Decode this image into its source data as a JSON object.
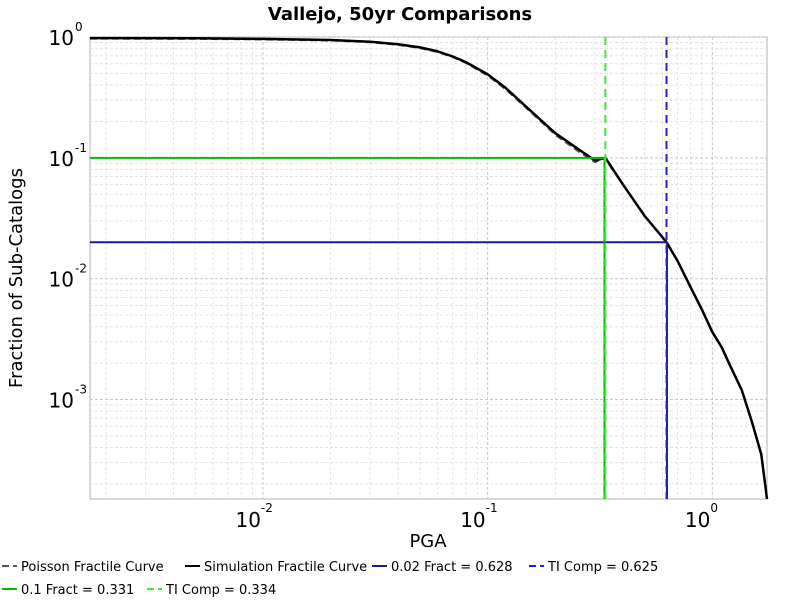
{
  "chart_data": {
    "type": "line",
    "title": "Vallejo, 50yr Comparisons",
    "xlabel": "PGA",
    "ylabel": "Fraction of Sub-Catalogs",
    "xscale": "log",
    "yscale": "log",
    "xlim": [
      0.0017,
      1.75
    ],
    "ylim": [
      0.00015,
      1.0
    ],
    "grid": true,
    "legend_position": "bottom",
    "x_ticks": [
      {
        "base": "10",
        "exp": "-2",
        "value": 0.01
      },
      {
        "base": "10",
        "exp": "-1",
        "value": 0.1
      },
      {
        "base": "10",
        "exp": "0",
        "value": 1
      }
    ],
    "y_ticks": [
      {
        "base": "10",
        "exp": "0",
        "value": 1
      },
      {
        "base": "10",
        "exp": "-1",
        "value": 0.1
      },
      {
        "base": "10",
        "exp": "-2",
        "value": 0.01
      },
      {
        "base": "10",
        "exp": "-3",
        "value": 0.001
      }
    ],
    "series": [
      {
        "name": "Poisson Fractile Curve",
        "color": "#555555",
        "dash": "dashed",
        "points": [
          [
            0.0017,
            0.97
          ],
          [
            0.005,
            0.965
          ],
          [
            0.01,
            0.955
          ],
          [
            0.02,
            0.935
          ],
          [
            0.03,
            0.905
          ],
          [
            0.04,
            0.86
          ],
          [
            0.05,
            0.81
          ],
          [
            0.06,
            0.75
          ],
          [
            0.07,
            0.68
          ],
          [
            0.08,
            0.61
          ],
          [
            0.1,
            0.48
          ],
          [
            0.12,
            0.37
          ],
          [
            0.15,
            0.255
          ],
          [
            0.2,
            0.155
          ],
          [
            0.25,
            0.115
          ],
          [
            0.3,
            0.092
          ],
          [
            0.331,
            0.1
          ],
          [
            0.4,
            0.06
          ],
          [
            0.5,
            0.033
          ],
          [
            0.6,
            0.022
          ],
          [
            0.628,
            0.02
          ],
          [
            0.7,
            0.014
          ],
          [
            0.8,
            0.0085
          ],
          [
            0.9,
            0.0055
          ],
          [
            1.0,
            0.0036
          ],
          [
            1.1,
            0.0027
          ],
          [
            1.2,
            0.0019
          ],
          [
            1.35,
            0.0012
          ],
          [
            1.5,
            0.00065
          ],
          [
            1.65,
            0.00035
          ],
          [
            1.75,
            0.00015
          ]
        ]
      },
      {
        "name": "Simulation Fractile Curve",
        "color": "#000000",
        "dash": "solid",
        "points": [
          [
            0.0017,
            0.98
          ],
          [
            0.005,
            0.975
          ],
          [
            0.01,
            0.965
          ],
          [
            0.02,
            0.945
          ],
          [
            0.03,
            0.915
          ],
          [
            0.04,
            0.87
          ],
          [
            0.05,
            0.82
          ],
          [
            0.06,
            0.76
          ],
          [
            0.07,
            0.69
          ],
          [
            0.08,
            0.62
          ],
          [
            0.1,
            0.49
          ],
          [
            0.12,
            0.38
          ],
          [
            0.15,
            0.26
          ],
          [
            0.2,
            0.16
          ],
          [
            0.25,
            0.12
          ],
          [
            0.3,
            0.095
          ],
          [
            0.334,
            0.1
          ],
          [
            0.4,
            0.06
          ],
          [
            0.5,
            0.033
          ],
          [
            0.6,
            0.022
          ],
          [
            0.625,
            0.02
          ],
          [
            0.7,
            0.014
          ],
          [
            0.8,
            0.0085
          ],
          [
            0.9,
            0.0055
          ],
          [
            1.0,
            0.0036
          ],
          [
            1.1,
            0.0027
          ],
          [
            1.2,
            0.0019
          ],
          [
            1.35,
            0.0012
          ],
          [
            1.5,
            0.00065
          ],
          [
            1.65,
            0.00035
          ],
          [
            1.75,
            0.00015
          ]
        ]
      }
    ],
    "reference_lines": [
      {
        "name": "0.02 Fract = 0.628",
        "color": "#1a1aa0",
        "dash": "solid",
        "x": 0.628,
        "y": 0.02
      },
      {
        "name": "TI Comp = 0.625",
        "color": "#2222cc",
        "dash": "dashed",
        "x": 0.625
      },
      {
        "name": "0.1 Fract = 0.331",
        "color": "#00bb00",
        "dash": "solid",
        "x": 0.331,
        "y": 0.1
      },
      {
        "name": "TI Comp = 0.334",
        "color": "#33ee33",
        "dash": "dashed",
        "x": 0.334
      }
    ],
    "legend": [
      {
        "label": "Poisson Fractile Curve",
        "color": "#555555",
        "dash": "dashed"
      },
      {
        "label": "Simulation Fractile Curve",
        "color": "#000000",
        "dash": "solid"
      },
      {
        "label": "0.02 Fract = 0.628",
        "color": "#1a1aa0",
        "dash": "solid"
      },
      {
        "label": "TI Comp = 0.625",
        "color": "#2222cc",
        "dash": "dashed"
      },
      {
        "label": "0.1 Fract = 0.331",
        "color": "#00bb00",
        "dash": "solid"
      },
      {
        "label": "TI Comp = 0.334",
        "color": "#33ee33",
        "dash": "dashed"
      }
    ]
  }
}
